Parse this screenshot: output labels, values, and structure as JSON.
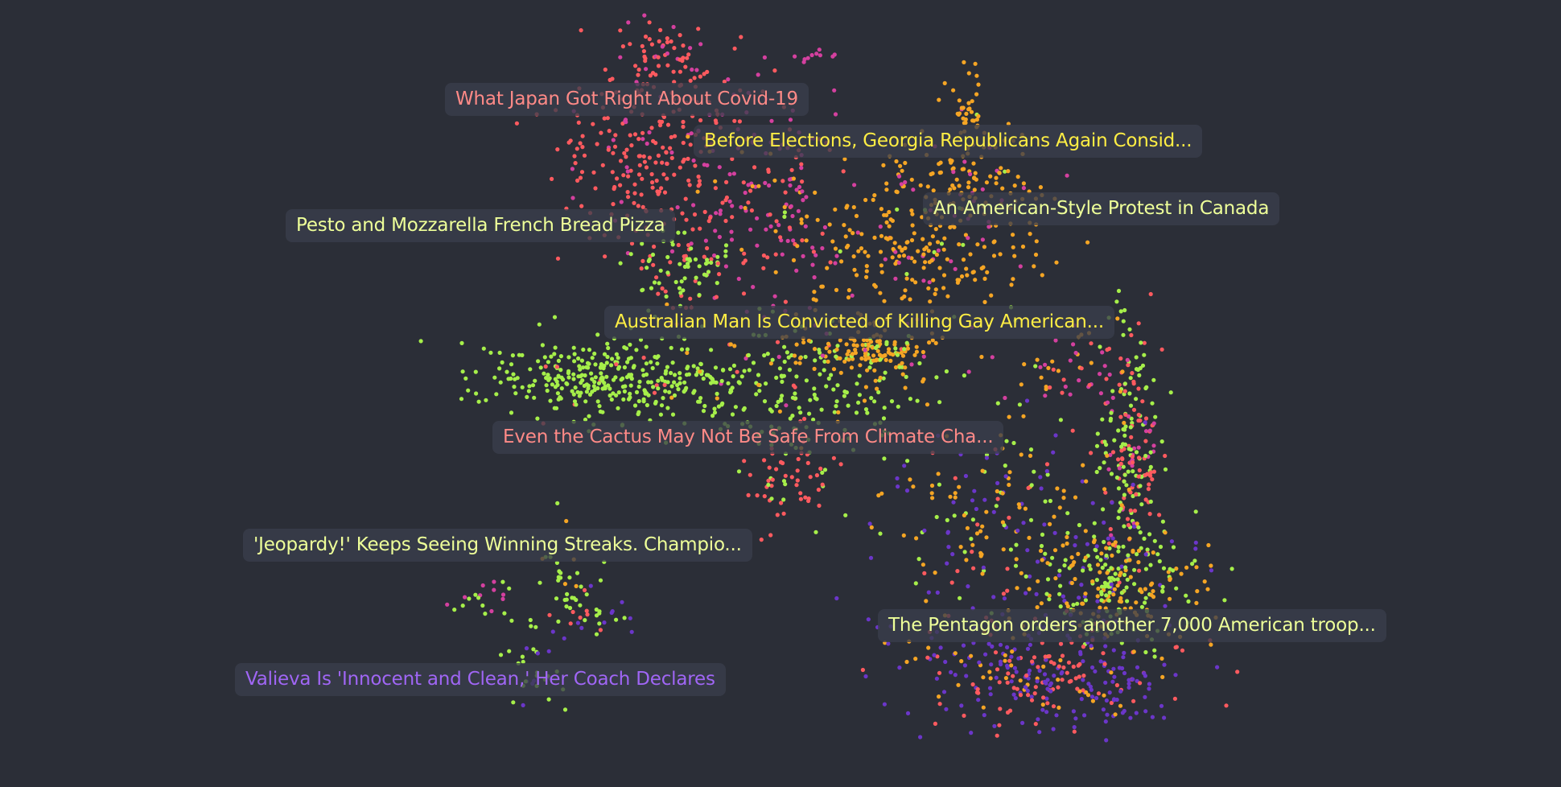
{
  "chart_data": {
    "type": "scatter",
    "grid": false,
    "legend": "none",
    "palette": {
      "red": "#ff5a5f",
      "magenta": "#d4409f",
      "orange": "#f5a524",
      "green": "#a6ef4a",
      "purple": "#6b36c9"
    },
    "background": "#2b2e37",
    "annotations": [
      {
        "text": "What Japan Got Right About Covid-19",
        "color": "#ff8a87"
      },
      {
        "text": "Before Elections, Georgia Republicans Again Consid...",
        "color": "#ffee44"
      },
      {
        "text": "Pesto and Mozzarella French Bread Pizza",
        "color": "#eeff99"
      },
      {
        "text": "An American-Style Protest in Canada",
        "color": "#eeff99"
      },
      {
        "text": "Australian Man Is Convicted of Killing Gay American...",
        "color": "#ffee44"
      },
      {
        "text": "Even the Cactus May Not Be Safe From Climate Cha...",
        "color": "#ff8a87"
      },
      {
        "text": "'Jeopardy!' Keeps Seeing Winning Streaks. Champio...",
        "color": "#eeff99"
      },
      {
        "text": "The Pentagon orders another 7,000 American troop...",
        "color": "#eeff99"
      },
      {
        "text": "Valieva Is 'Innocent and Clean,' Her Coach Declares",
        "color": "#a066f5"
      }
    ]
  }
}
